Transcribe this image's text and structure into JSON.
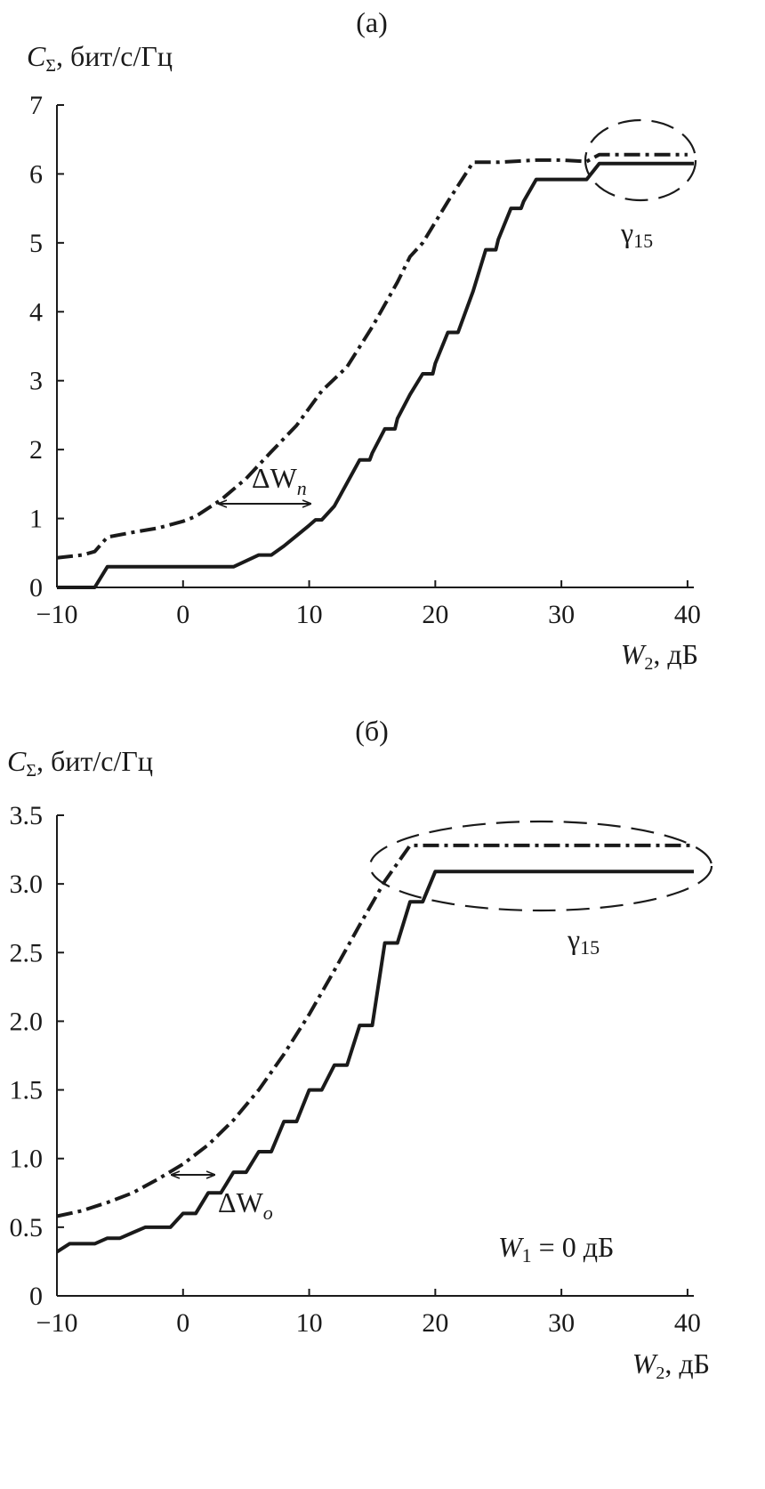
{
  "chart_data": [
    {
      "type": "line",
      "panel_label": "(a)",
      "ylabel_main": "C",
      "ylabel_sub": "Σ",
      "ylabel_rest": ", бит/с/Гц",
      "xlabel_main": "W",
      "xlabel_sub": "2",
      "xlabel_rest": ", дБ",
      "xlim": [
        -10,
        40.5
      ],
      "ylim": [
        0,
        7
      ],
      "x_ticks": [
        -10,
        0,
        10,
        20,
        30,
        40
      ],
      "x_tick_labels": [
        "−10",
        "0",
        "10",
        "20",
        "30",
        "40"
      ],
      "y_ticks": [
        0,
        1,
        2,
        3,
        4,
        5,
        6,
        7
      ],
      "y_tick_labels": [
        "0",
        "1",
        "2",
        "3",
        "4",
        "5",
        "6",
        "7"
      ],
      "series": [
        {
          "style": "dash-dot",
          "x": [
            -10,
            -8,
            -7,
            -6,
            -4,
            -2,
            0,
            1,
            3,
            5,
            7,
            9,
            11,
            13,
            15,
            17,
            18,
            19,
            21,
            23,
            25,
            28,
            30,
            32,
            33,
            35,
            37,
            40
          ],
          "y": [
            0.43,
            0.47,
            0.52,
            0.73,
            0.8,
            0.86,
            0.96,
            1.03,
            1.27,
            1.58,
            1.97,
            2.35,
            2.85,
            3.2,
            3.78,
            4.43,
            4.8,
            5.0,
            5.6,
            6.17,
            6.17,
            6.2,
            6.2,
            6.18,
            6.28,
            6.28,
            6.28,
            6.28
          ]
        },
        {
          "style": "solid",
          "x": [
            -10,
            -7,
            -6,
            -5,
            4,
            6,
            7,
            8,
            9,
            10,
            10.5,
            11,
            12,
            14,
            14.8,
            15,
            16,
            16.8,
            17,
            18,
            19,
            19.8,
            20,
            21,
            21.8,
            22,
            23,
            24,
            24.8,
            25,
            26,
            26.8,
            27,
            28,
            28.5,
            29,
            32,
            33,
            40.5
          ],
          "y": [
            0,
            0,
            0.3,
            0.3,
            0.3,
            0.47,
            0.47,
            0.6,
            0.75,
            0.9,
            0.98,
            0.98,
            1.18,
            1.85,
            1.85,
            1.95,
            2.3,
            2.3,
            2.45,
            2.8,
            3.1,
            3.1,
            3.25,
            3.7,
            3.7,
            3.8,
            4.3,
            4.9,
            4.9,
            5.05,
            5.5,
            5.5,
            5.6,
            5.92,
            5.92,
            5.92,
            5.92,
            6.15,
            6.15
          ]
        }
      ],
      "annotations": {
        "delta_main": "ΔW",
        "delta_sub": "n",
        "gamma_main": "γ",
        "gamma_sub": "15"
      }
    },
    {
      "type": "line",
      "panel_label": "(б)",
      "ylabel_main": "C",
      "ylabel_sub": "Σ",
      "ylabel_rest": ", бит/с/Гц",
      "xlabel_main": "W",
      "xlabel_sub": "2",
      "xlabel_rest": ", дБ",
      "xlim": [
        -10,
        40.5
      ],
      "ylim": [
        0,
        3.5
      ],
      "x_ticks": [
        -10,
        0,
        10,
        20,
        30,
        40
      ],
      "x_tick_labels": [
        "−10",
        "0",
        "10",
        "20",
        "30",
        "40"
      ],
      "y_ticks": [
        0,
        0.5,
        1.0,
        1.5,
        2.0,
        2.5,
        3.0,
        3.5
      ],
      "y_tick_labels": [
        "0",
        "0.5",
        "1.0",
        "1.5",
        "2.0",
        "2.5",
        "3.0",
        "3.5"
      ],
      "series": [
        {
          "style": "dash-dot",
          "x": [
            -10,
            -8,
            -6,
            -4,
            -2,
            0,
            2,
            4,
            6,
            8,
            10,
            12,
            14,
            16,
            17,
            18,
            20,
            25,
            30,
            35,
            40.5
          ],
          "y": [
            0.58,
            0.62,
            0.68,
            0.75,
            0.85,
            0.96,
            1.1,
            1.28,
            1.5,
            1.76,
            2.05,
            2.37,
            2.7,
            3.02,
            3.15,
            3.28,
            3.28,
            3.28,
            3.28,
            3.28,
            3.28
          ],
          "name": ""
        },
        {
          "style": "solid",
          "x": [
            -10,
            -9,
            -7,
            -6,
            -5,
            -4,
            -3,
            -1,
            0,
            1,
            2,
            3,
            4,
            5,
            6,
            7,
            8,
            9,
            10,
            11,
            12,
            13,
            14,
            15,
            16,
            17,
            18,
            19,
            20,
            21,
            40.5
          ],
          "y": [
            0.32,
            0.38,
            0.38,
            0.42,
            0.42,
            0.46,
            0.5,
            0.5,
            0.6,
            0.6,
            0.75,
            0.75,
            0.9,
            0.9,
            1.05,
            1.05,
            1.27,
            1.27,
            1.5,
            1.5,
            1.68,
            1.68,
            1.97,
            1.97,
            2.57,
            2.57,
            2.87,
            2.87,
            3.09,
            3.09,
            3.09
          ]
        }
      ],
      "annotations": {
        "delta_main": "ΔW",
        "delta_sub": "o",
        "gamma_main": "γ",
        "gamma_sub": "15",
        "w1_main": "W",
        "w1_sub": "1",
        "w1_rest": " = 0 дБ"
      }
    }
  ]
}
